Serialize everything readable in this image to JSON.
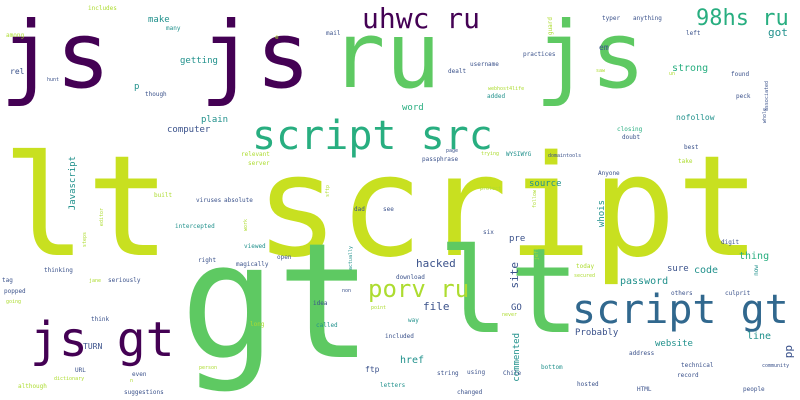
{
  "palette": {
    "purple": "#440154",
    "indigo": "#3b528b",
    "blue": "#31688e",
    "teal": "#21918c",
    "sea": "#28ae80",
    "green": "#5ec962",
    "lime": "#addc30",
    "yellow": "#c8e020"
  },
  "words": [
    {
      "text": "lt script",
      "color": "yellow"
    },
    {
      "text": "gt",
      "color": "green"
    },
    {
      "text": "lt",
      "color": "green"
    },
    {
      "text": "js",
      "color": "purple"
    },
    {
      "text": "js",
      "color": "purple"
    },
    {
      "text": "ru",
      "color": "green"
    },
    {
      "text": "js",
      "color": "green"
    },
    {
      "text": "script src",
      "color": "sea"
    },
    {
      "text": "script gt",
      "color": "blue"
    },
    {
      "text": "js gt",
      "color": "purple"
    },
    {
      "text": "uhwc ru",
      "color": "purple"
    },
    {
      "text": "98hs ru",
      "color": "sea"
    },
    {
      "text": "porv ru",
      "color": "lime"
    },
    {
      "text": "got",
      "color": "teal"
    },
    {
      "text": "hacked",
      "color": "indigo"
    },
    {
      "text": "site",
      "color": "indigo"
    },
    {
      "text": "file",
      "color": "indigo"
    },
    {
      "text": "password",
      "color": "teal"
    },
    {
      "text": "code",
      "color": "teal"
    },
    {
      "text": "computer",
      "color": "indigo"
    },
    {
      "text": "Javascript",
      "color": "teal"
    },
    {
      "text": "source",
      "color": "teal"
    },
    {
      "text": "whois",
      "color": "teal"
    },
    {
      "text": "website",
      "color": "teal"
    },
    {
      "text": "commented",
      "color": "teal"
    },
    {
      "text": "pp",
      "color": "indigo"
    },
    {
      "text": "href",
      "color": "teal"
    },
    {
      "text": "strong",
      "color": "sea"
    },
    {
      "text": "getting",
      "color": "teal"
    },
    {
      "text": "plain",
      "color": "teal"
    },
    {
      "text": "line",
      "color": "teal"
    },
    {
      "text": "Probably",
      "color": "indigo"
    },
    {
      "text": "thing",
      "color": "sea"
    },
    {
      "text": "pre",
      "color": "indigo"
    },
    {
      "text": "sure",
      "color": "indigo"
    },
    {
      "text": "make",
      "color": "teal"
    },
    {
      "text": "word",
      "color": "sea"
    },
    {
      "text": "nofollow",
      "color": "teal"
    },
    {
      "text": "em",
      "color": "indigo"
    },
    {
      "text": "GO",
      "color": "indigo"
    },
    {
      "text": "ftp",
      "color": "indigo"
    },
    {
      "text": "TURN",
      "color": "indigo"
    },
    {
      "text": "p",
      "color": "teal"
    },
    {
      "text": "rel",
      "color": "indigo"
    },
    {
      "text": "includes",
      "color": "lime"
    },
    {
      "text": "many",
      "color": "teal"
    },
    {
      "text": "mail",
      "color": "indigo"
    },
    {
      "text": "guard",
      "color": "lime"
    },
    {
      "text": "typer",
      "color": "indigo"
    },
    {
      "text": "anything",
      "color": "indigo"
    },
    {
      "text": "left",
      "color": "indigo"
    },
    {
      "text": "among",
      "color": "lime"
    },
    {
      "text": "hunt",
      "color": "indigo"
    },
    {
      "text": "practices",
      "color": "indigo"
    },
    {
      "text": "username",
      "color": "indigo"
    },
    {
      "text": "dealt",
      "color": "indigo"
    },
    {
      "text": "webhost4life",
      "color": "lime"
    },
    {
      "text": "added",
      "color": "teal"
    },
    {
      "text": "saw",
      "color": "lime"
    },
    {
      "text": "un",
      "color": "lime"
    },
    {
      "text": "found",
      "color": "indigo"
    },
    {
      "text": "associated",
      "color": "indigo"
    },
    {
      "text": "peck",
      "color": "indigo"
    },
    {
      "text": "whole",
      "color": "indigo"
    },
    {
      "text": "though",
      "color": "indigo"
    },
    {
      "text": "closing",
      "color": "sea"
    },
    {
      "text": "doubt",
      "color": "indigo"
    },
    {
      "text": "best",
      "color": "indigo"
    },
    {
      "text": "page",
      "color": "indigo"
    },
    {
      "text": "trying",
      "color": "lime"
    },
    {
      "text": "WYSIWYG",
      "color": "teal"
    },
    {
      "text": "domaintools",
      "color": "indigo"
    },
    {
      "text": "passphrase",
      "color": "indigo"
    },
    {
      "text": "relevant",
      "color": "lime"
    },
    {
      "text": "server",
      "color": "lime"
    },
    {
      "text": "take",
      "color": "lime"
    },
    {
      "text": "Anyone",
      "color": "indigo"
    },
    {
      "text": "protect",
      "color": "lime"
    },
    {
      "text": "follow",
      "color": "lime"
    },
    {
      "text": "built",
      "color": "lime"
    },
    {
      "text": "viruses",
      "color": "indigo"
    },
    {
      "text": "absolute",
      "color": "indigo"
    },
    {
      "text": "sftp",
      "color": "lime"
    },
    {
      "text": "dad",
      "color": "indigo"
    },
    {
      "text": "see",
      "color": "indigo"
    },
    {
      "text": "editor",
      "color": "lime"
    },
    {
      "text": "steps",
      "color": "lime"
    },
    {
      "text": "intercepted",
      "color": "teal"
    },
    {
      "text": "work",
      "color": "lime"
    },
    {
      "text": "six",
      "color": "indigo"
    },
    {
      "text": "viewed",
      "color": "teal"
    },
    {
      "text": "digit",
      "color": "indigo"
    },
    {
      "text": "open",
      "color": "indigo"
    },
    {
      "text": "right",
      "color": "indigo"
    },
    {
      "text": "magically",
      "color": "indigo"
    },
    {
      "text": "actually",
      "color": "teal"
    },
    {
      "text": "jeff",
      "color": "lime"
    },
    {
      "text": "today",
      "color": "lime"
    },
    {
      "text": "now",
      "color": "teal"
    },
    {
      "text": "tag",
      "color": "indigo"
    },
    {
      "text": "thinking",
      "color": "indigo"
    },
    {
      "text": "seriously",
      "color": "indigo"
    },
    {
      "text": "jane",
      "color": "lime"
    },
    {
      "text": "download",
      "color": "indigo"
    },
    {
      "text": "secured",
      "color": "lime"
    },
    {
      "text": "popped",
      "color": "indigo"
    },
    {
      "text": "others",
      "color": "indigo"
    },
    {
      "text": "culprit",
      "color": "indigo"
    },
    {
      "text": "non",
      "color": "indigo"
    },
    {
      "text": "going",
      "color": "lime"
    },
    {
      "text": "idea",
      "color": "indigo"
    },
    {
      "text": "point",
      "color": "lime"
    },
    {
      "text": "never",
      "color": "lime"
    },
    {
      "text": "think",
      "color": "indigo"
    },
    {
      "text": "long",
      "color": "lime"
    },
    {
      "text": "called",
      "color": "teal"
    },
    {
      "text": "way",
      "color": "teal"
    },
    {
      "text": "included",
      "color": "indigo"
    },
    {
      "text": "address",
      "color": "indigo"
    },
    {
      "text": "technical",
      "color": "indigo"
    },
    {
      "text": "record",
      "color": "indigo"
    },
    {
      "text": "community",
      "color": "indigo"
    },
    {
      "text": "URL",
      "color": "indigo"
    },
    {
      "text": "dictionary",
      "color": "lime"
    },
    {
      "text": "even",
      "color": "indigo"
    },
    {
      "text": "n",
      "color": "lime"
    },
    {
      "text": "person",
      "color": "lime"
    },
    {
      "text": "string",
      "color": "indigo"
    },
    {
      "text": "using",
      "color": "indigo"
    },
    {
      "text": "Chile",
      "color": "indigo"
    },
    {
      "text": "bottom",
      "color": "teal"
    },
    {
      "text": "although",
      "color": "lime"
    },
    {
      "text": "suggestions",
      "color": "indigo"
    },
    {
      "text": "letters",
      "color": "teal"
    },
    {
      "text": "changed",
      "color": "indigo"
    },
    {
      "text": "hosted",
      "color": "indigo"
    },
    {
      "text": "HTML",
      "color": "indigo"
    },
    {
      "text": "people",
      "color": "indigo"
    },
    {
      "text": "e",
      "color": "lime"
    }
  ]
}
